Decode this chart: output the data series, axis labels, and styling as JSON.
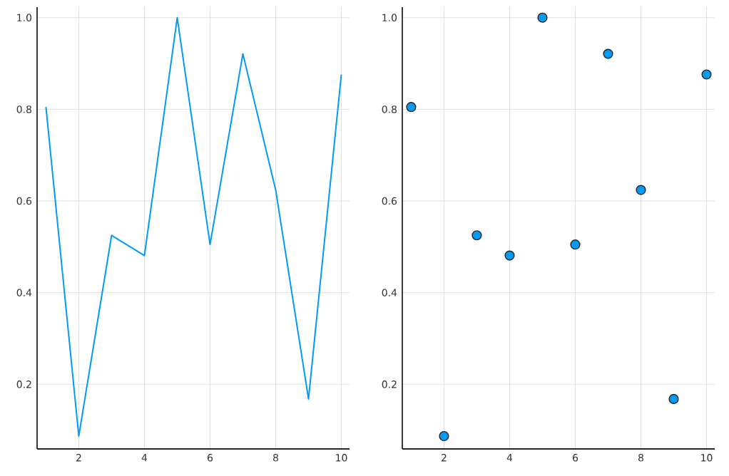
{
  "chart_data": [
    {
      "type": "line",
      "x": [
        1,
        2,
        3,
        4,
        5,
        6,
        7,
        8,
        9,
        10
      ],
      "series": [
        {
          "color": "#009af9",
          "values": [
            0.805,
            0.087,
            0.525,
            0.481,
            1.0,
            0.505,
            0.921,
            0.624,
            0.168,
            0.876
          ]
        }
      ],
      "xlim": [
        0.73,
        10.25
      ],
      "ylim": [
        0.059,
        1.023
      ],
      "xticks": [
        2,
        4,
        6,
        8,
        10
      ],
      "yticks": [
        0.2,
        0.4,
        0.6,
        0.8,
        {
          "value": 1,
          "label": "1.0"
        }
      ],
      "grid": true,
      "marker": "none",
      "line_style": "solid"
    },
    {
      "type": "scatter",
      "x": [
        1,
        2,
        3,
        4,
        5,
        6,
        7,
        8,
        9,
        10
      ],
      "series": [
        {
          "color": "#009af9",
          "values": [
            0.805,
            0.087,
            0.525,
            0.481,
            1.0,
            0.505,
            0.921,
            0.624,
            0.168,
            0.876
          ]
        }
      ],
      "xlim": [
        0.73,
        10.25
      ],
      "ylim": [
        0.059,
        1.023
      ],
      "xticks": [
        2,
        4,
        6,
        8,
        10
      ],
      "yticks": [
        0.2,
        0.4,
        0.6,
        0.8,
        {
          "value": 1,
          "label": "1.0"
        }
      ],
      "grid": true,
      "marker": "circle"
    }
  ]
}
